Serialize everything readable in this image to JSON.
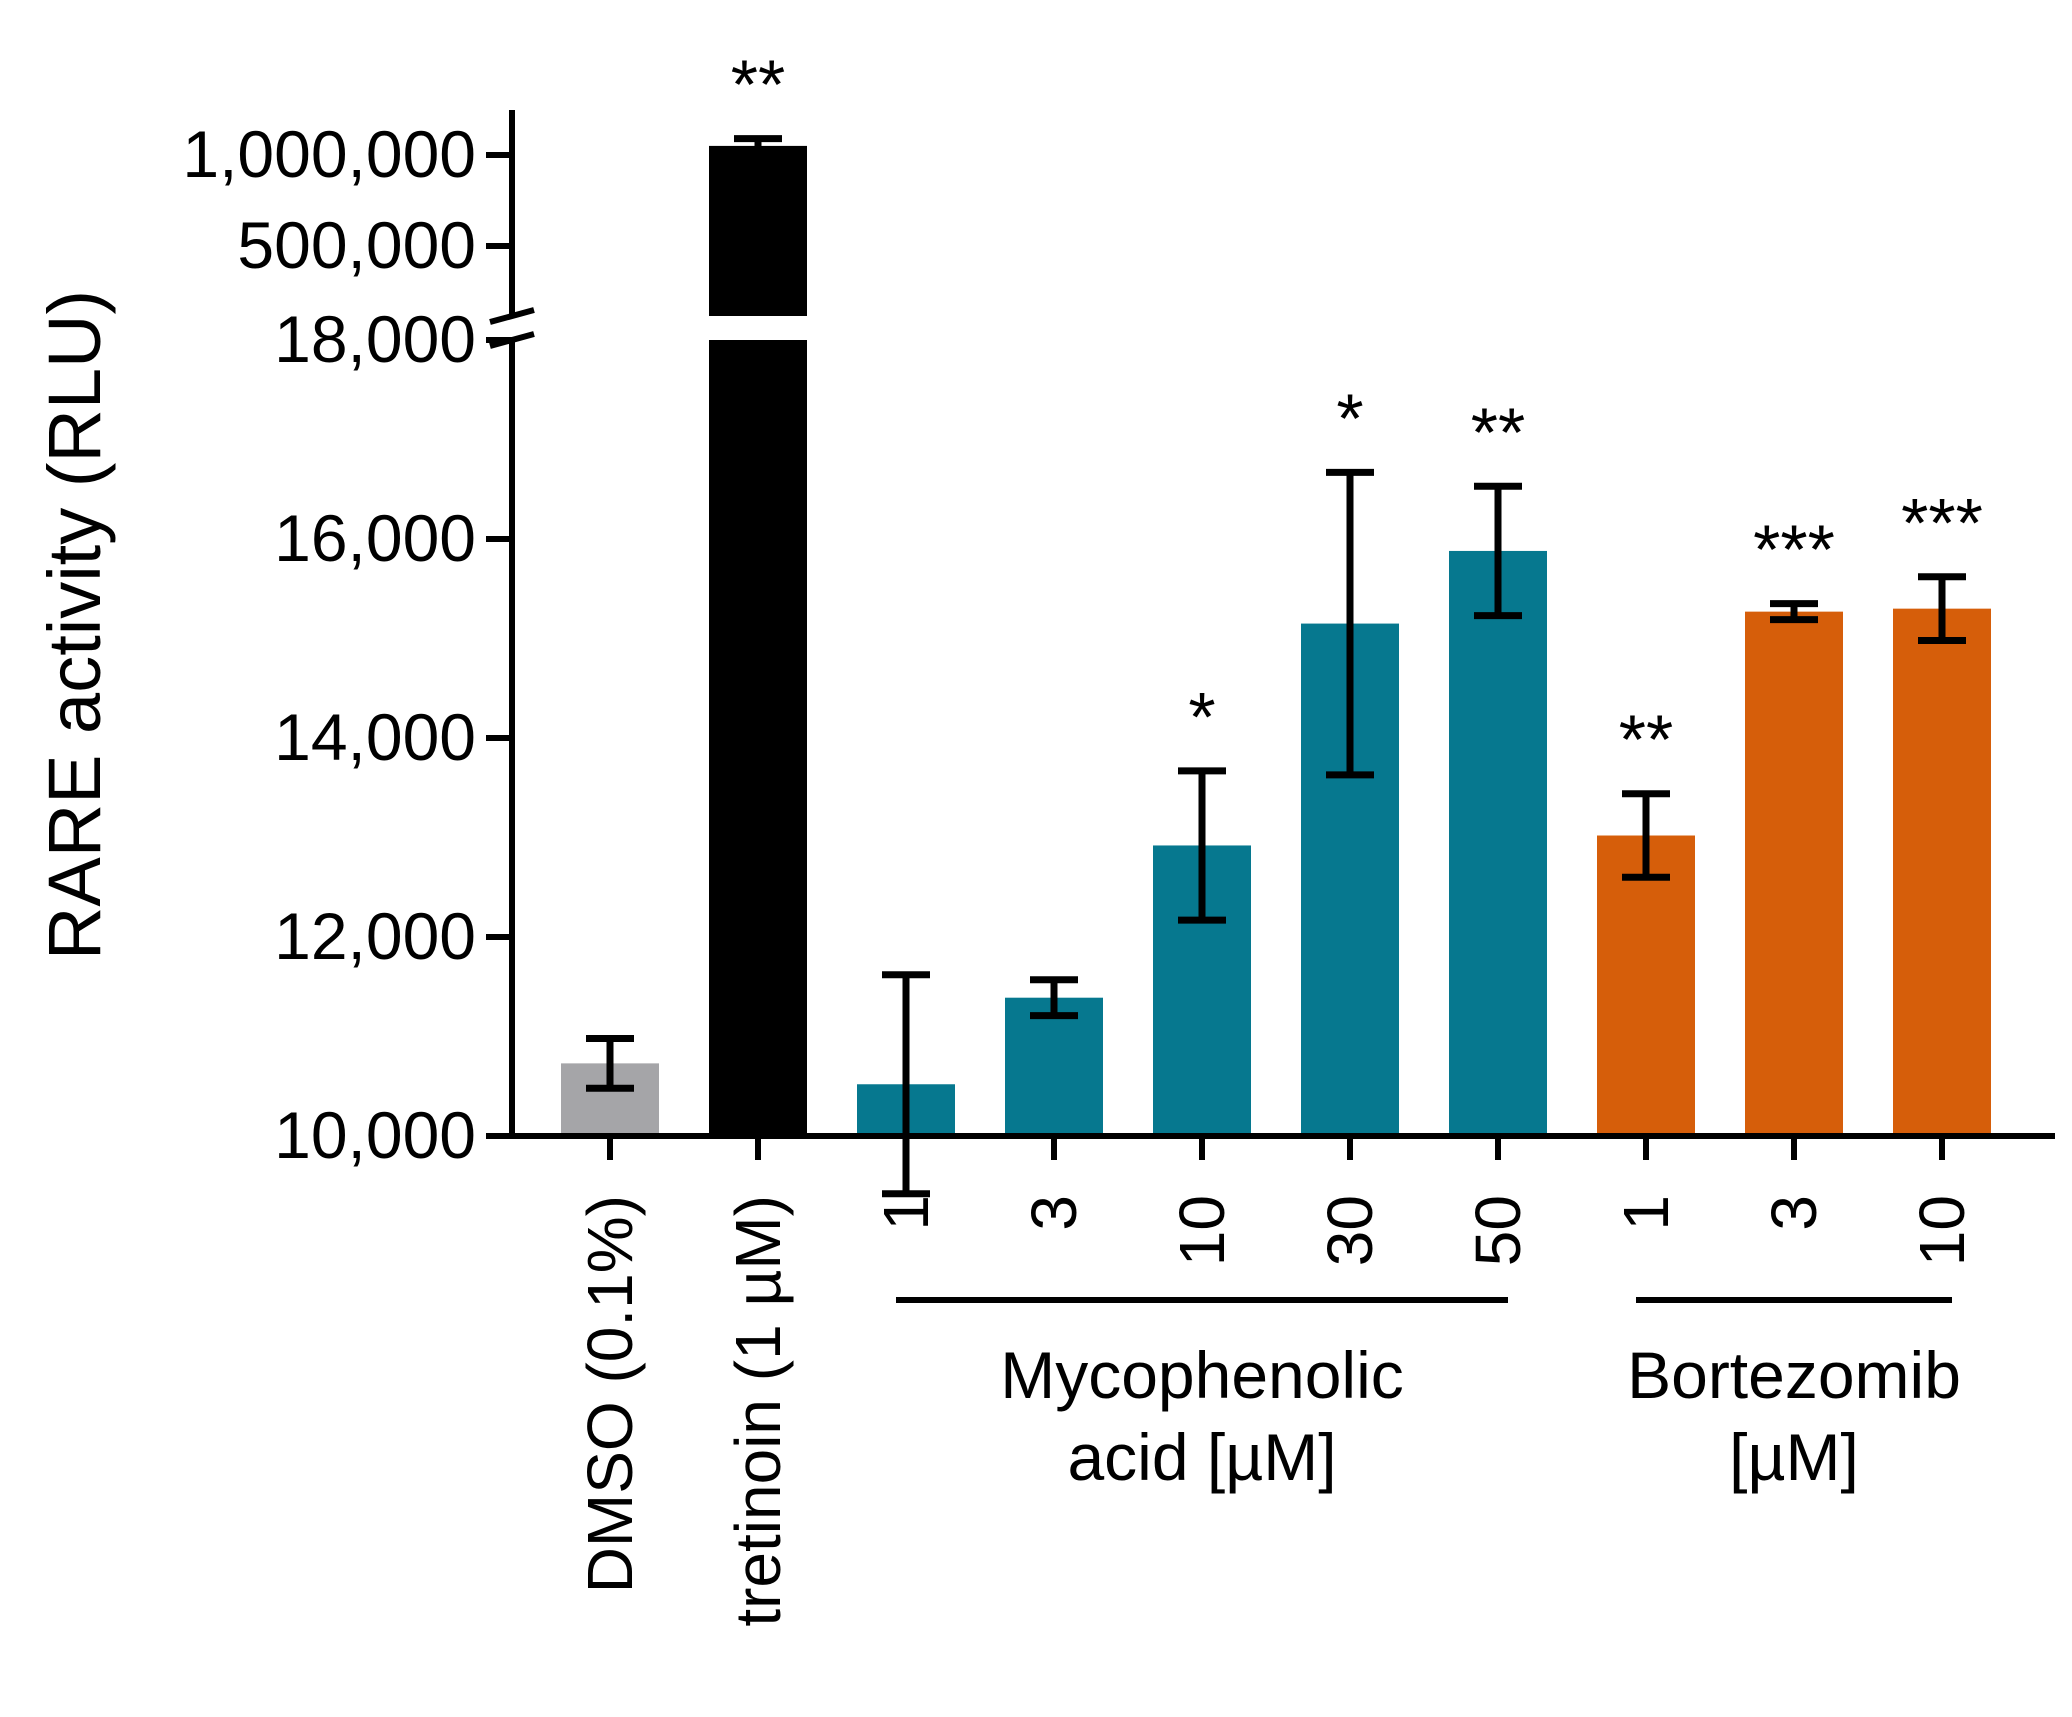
{
  "chart_data": {
    "type": "bar",
    "ylabel": "RARE activity (RLU)",
    "yscale": "broken",
    "ylim_lower": [
      10000,
      18000
    ],
    "ylim_upper": [
      500000,
      1000000
    ],
    "yticks_lower": [
      {
        "value": 10000,
        "label": "10,000"
      },
      {
        "value": 12000,
        "label": "12,000"
      },
      {
        "value": 14000,
        "label": "14,000"
      },
      {
        "value": 16000,
        "label": "16,000"
      },
      {
        "value": 18000,
        "label": "18,000"
      }
    ],
    "yticks_upper": [
      {
        "value": 500000,
        "label": "500,000"
      },
      {
        "value": 1000000,
        "label": "1,000,000"
      }
    ],
    "grid": false,
    "legend": "none",
    "colors": {
      "DMSO": "#a5a5a8",
      "tretinoin": "#000000",
      "Mycophenolic": "#06788f",
      "Bortezomib": "#d65e0a"
    },
    "bars": [
      {
        "label": "DMSO (0.1%)",
        "value": 10730,
        "error": 250,
        "sig": "",
        "color_key": "DMSO"
      },
      {
        "label": "tretinoin (1 µM)",
        "value": 1050000,
        "error": 40000,
        "sig": "**",
        "color_key": "tretinoin"
      },
      {
        "label": "1",
        "value": 10520,
        "error": 1100,
        "sig": "",
        "color_key": "Mycophenolic"
      },
      {
        "label": "3",
        "value": 11390,
        "error": 180,
        "sig": "",
        "color_key": "Mycophenolic"
      },
      {
        "label": "10",
        "value": 12920,
        "error": 750,
        "sig": "*",
        "color_key": "Mycophenolic"
      },
      {
        "label": "30",
        "value": 15150,
        "error": 1520,
        "sig": "*",
        "color_key": "Mycophenolic"
      },
      {
        "label": "50",
        "value": 15880,
        "error": 650,
        "sig": "**",
        "color_key": "Mycophenolic"
      },
      {
        "label": "1",
        "value": 13020,
        "error": 420,
        "sig": "**",
        "color_key": "Bortezomib"
      },
      {
        "label": "3",
        "value": 15270,
        "error": 80,
        "sig": "***",
        "color_key": "Bortezomib"
      },
      {
        "label": "10",
        "value": 15300,
        "error": 320,
        "sig": "***",
        "color_key": "Bortezomib"
      }
    ],
    "groups": [
      {
        "lines": [
          "Mycophenolic",
          "acid [µM]"
        ],
        "from_bar": 2,
        "to_bar": 6
      },
      {
        "lines": [
          "Bortezomib",
          "[µM]"
        ],
        "from_bar": 7,
        "to_bar": 9
      }
    ]
  }
}
